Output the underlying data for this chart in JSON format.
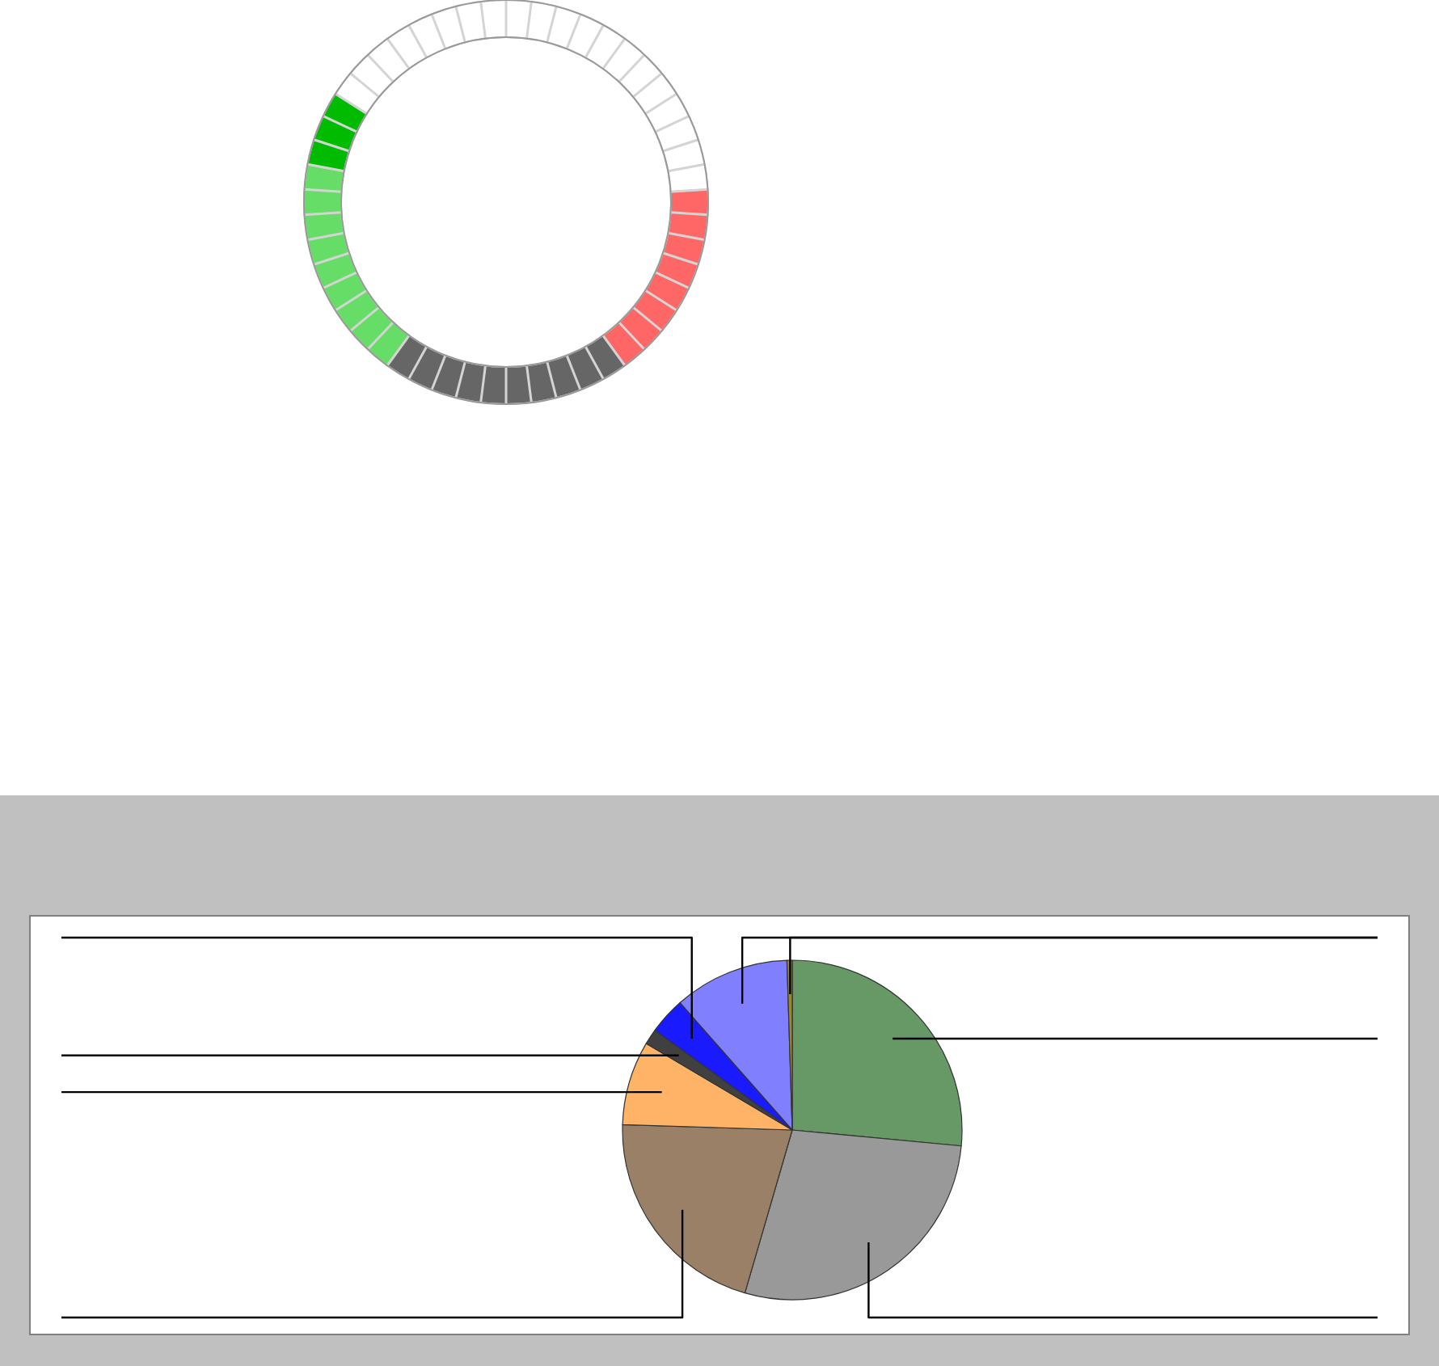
{
  "chart_data": [
    {
      "type": "donut",
      "categories": [
        null,
        null,
        null,
        null,
        null
      ],
      "values": [
        16,
        20,
        18,
        6,
        40
      ],
      "colors": [
        "#ff6666",
        "#666666",
        "#66dd66",
        "#00bb00",
        "#ffffff"
      ]
    },
    {
      "type": "pie",
      "categories": [
        null,
        null,
        null,
        null,
        null,
        null,
        null,
        null
      ],
      "values": [
        26.5,
        28,
        21,
        8,
        1.5,
        3.5,
        11,
        0.5
      ],
      "colors": [
        "#669966",
        "#999999",
        "#998066",
        "#ffb366",
        "#404040",
        "#1a1aff",
        "#8080ff",
        "#998833"
      ]
    }
  ]
}
